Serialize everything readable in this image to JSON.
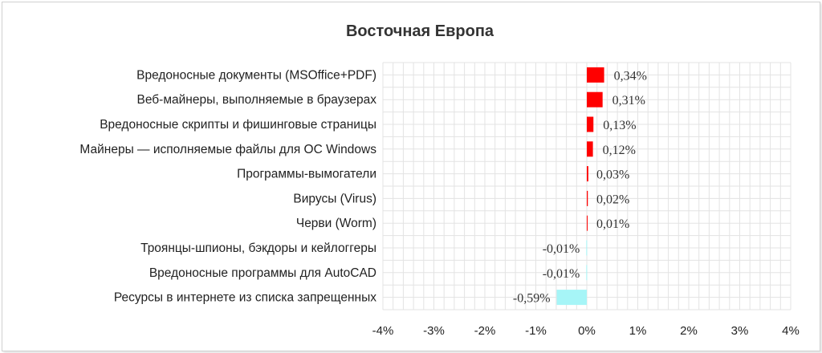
{
  "chart_data": {
    "type": "bar",
    "orientation": "horizontal",
    "title": "Восточная Европа",
    "categories": [
      "Вредоносные документы (MSOffice+PDF)",
      "Веб-майнеры, выполняемые в браузерах",
      "Вредоносные скрипты и фишинговые страницы",
      "Майнеры — исполняемые файлы для ОС Windows",
      "Программы-вымогатели",
      "Вирусы (Virus)",
      "Черви (Worm)",
      "Троянцы-шпионы, бэкдоры и кейлоггеры",
      "Вредоносные программы для AutoCAD",
      "Ресурсы в интернете из списка запрещенных"
    ],
    "values": [
      0.34,
      0.31,
      0.13,
      0.12,
      0.03,
      0.02,
      0.01,
      -0.01,
      -0.01,
      -0.59
    ],
    "data_labels": [
      "0,34%",
      "0,31%",
      "0,13%",
      "0,12%",
      "0,03%",
      "0,02%",
      "0,01%",
      "-0,01%",
      "-0,01%",
      "-0,59%"
    ],
    "xlim": [
      -4,
      4
    ],
    "x_ticks": [
      -4,
      -3,
      -2,
      -1,
      0,
      1,
      2,
      3,
      4
    ],
    "x_tick_labels": [
      "-4%",
      "-3%",
      "-2%",
      "-1%",
      "0%",
      "1%",
      "2%",
      "3%",
      "4%"
    ],
    "grid": true,
    "colors": {
      "positive": "#ff0000",
      "negative": "#a6f5f7",
      "grid": "#e3e3e3"
    }
  }
}
